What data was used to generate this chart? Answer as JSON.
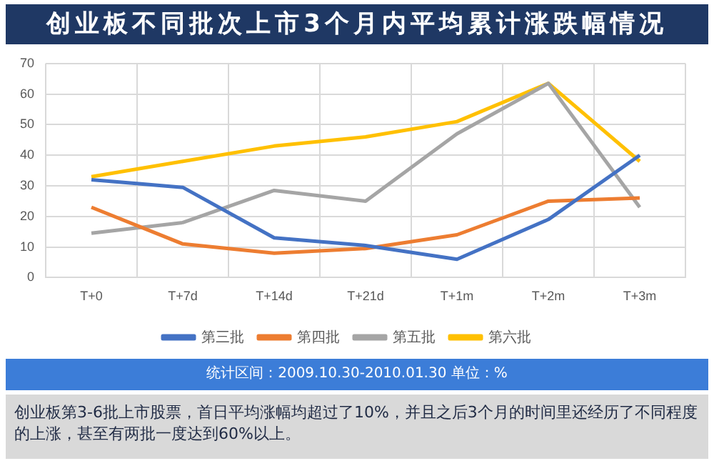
{
  "chart_data": {
    "type": "line",
    "title": "创业板不同批次上市3个月内平均累计涨跌幅情况",
    "categories": [
      "T+0",
      "T+7d",
      "T+14d",
      "T+21d",
      "T+1m",
      "T+2m",
      "T+3m"
    ],
    "series": [
      {
        "name": "第三批",
        "color": "#4472c4",
        "values": [
          32,
          29.5,
          13,
          10.5,
          6,
          19,
          40
        ]
      },
      {
        "name": "第四批",
        "color": "#ed7d31",
        "values": [
          23,
          11,
          8,
          9.5,
          14,
          25,
          26
        ]
      },
      {
        "name": "第五批",
        "color": "#a5a5a5",
        "values": [
          14.5,
          18,
          28.5,
          25,
          47,
          63.5,
          23
        ]
      },
      {
        "name": "第六批",
        "color": "#ffc000",
        "values": [
          33,
          38,
          43,
          46,
          51,
          63.5,
          38
        ]
      }
    ],
    "ylim": [
      0,
      70
    ],
    "yticks": [
      0,
      10,
      20,
      30,
      40,
      50,
      60,
      70
    ],
    "grid": true,
    "legend": "bottom",
    "marker": "none",
    "line_style": "solid",
    "annotations": [
      "统计区间：2009.10.30-2010.01.30 单位：%",
      "创业板第3-6批上市股票，首日平均涨幅均超过了10%，并且之后3个月的时间里还经历了不同程度的上涨，甚至有两批一度达到60%以上。"
    ]
  }
}
